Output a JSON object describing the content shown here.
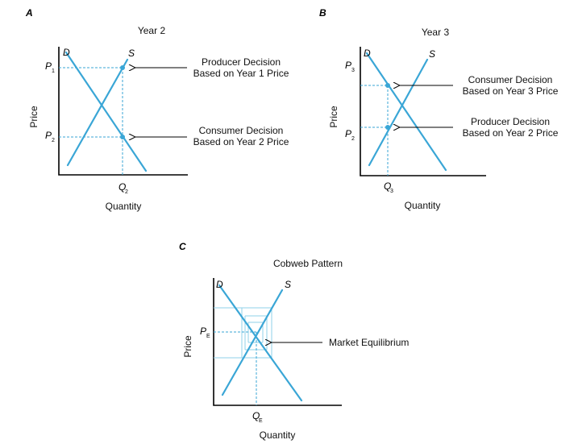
{
  "panel_a": {
    "letter": "A",
    "title": "Year 2",
    "curve_demand": "D",
    "curve_supply": "S",
    "p1": "P",
    "p1_sub": "1",
    "p2": "P",
    "p2_sub": "2",
    "q": "Q",
    "q_sub": "2",
    "ylabel": "Price",
    "xlabel": "Quantity",
    "annotation_top": [
      "Producer Decision",
      "Based on Year 1 Price"
    ],
    "annotation_bottom": [
      "Consumer Decision",
      "Based on Year 2 Price"
    ]
  },
  "panel_b": {
    "letter": "B",
    "title": "Year 3",
    "curve_demand": "D",
    "curve_supply": "S",
    "p3": "P",
    "p3_sub": "3",
    "p2": "P",
    "p2_sub": "2",
    "q": "Q",
    "q_sub": "3",
    "ylabel": "Price",
    "xlabel": "Quantity",
    "annotation_top": [
      "Consumer Decision",
      "Based on Year 3 Price"
    ],
    "annotation_bottom": [
      "Producer Decision",
      "Based on Year 2 Price"
    ]
  },
  "panel_c": {
    "letter": "C",
    "title": "Cobweb Pattern",
    "curve_demand": "D",
    "curve_supply": "S",
    "pe": "P",
    "pe_sub": "E",
    "qe": "Q",
    "qe_sub": "E",
    "ylabel": "Price",
    "xlabel": "Quantity",
    "annotation": "Market Equilibrium"
  },
  "colors": {
    "curve": "#3aa6d6",
    "cobweb": "#8fd0ea",
    "axis": "#000000"
  }
}
